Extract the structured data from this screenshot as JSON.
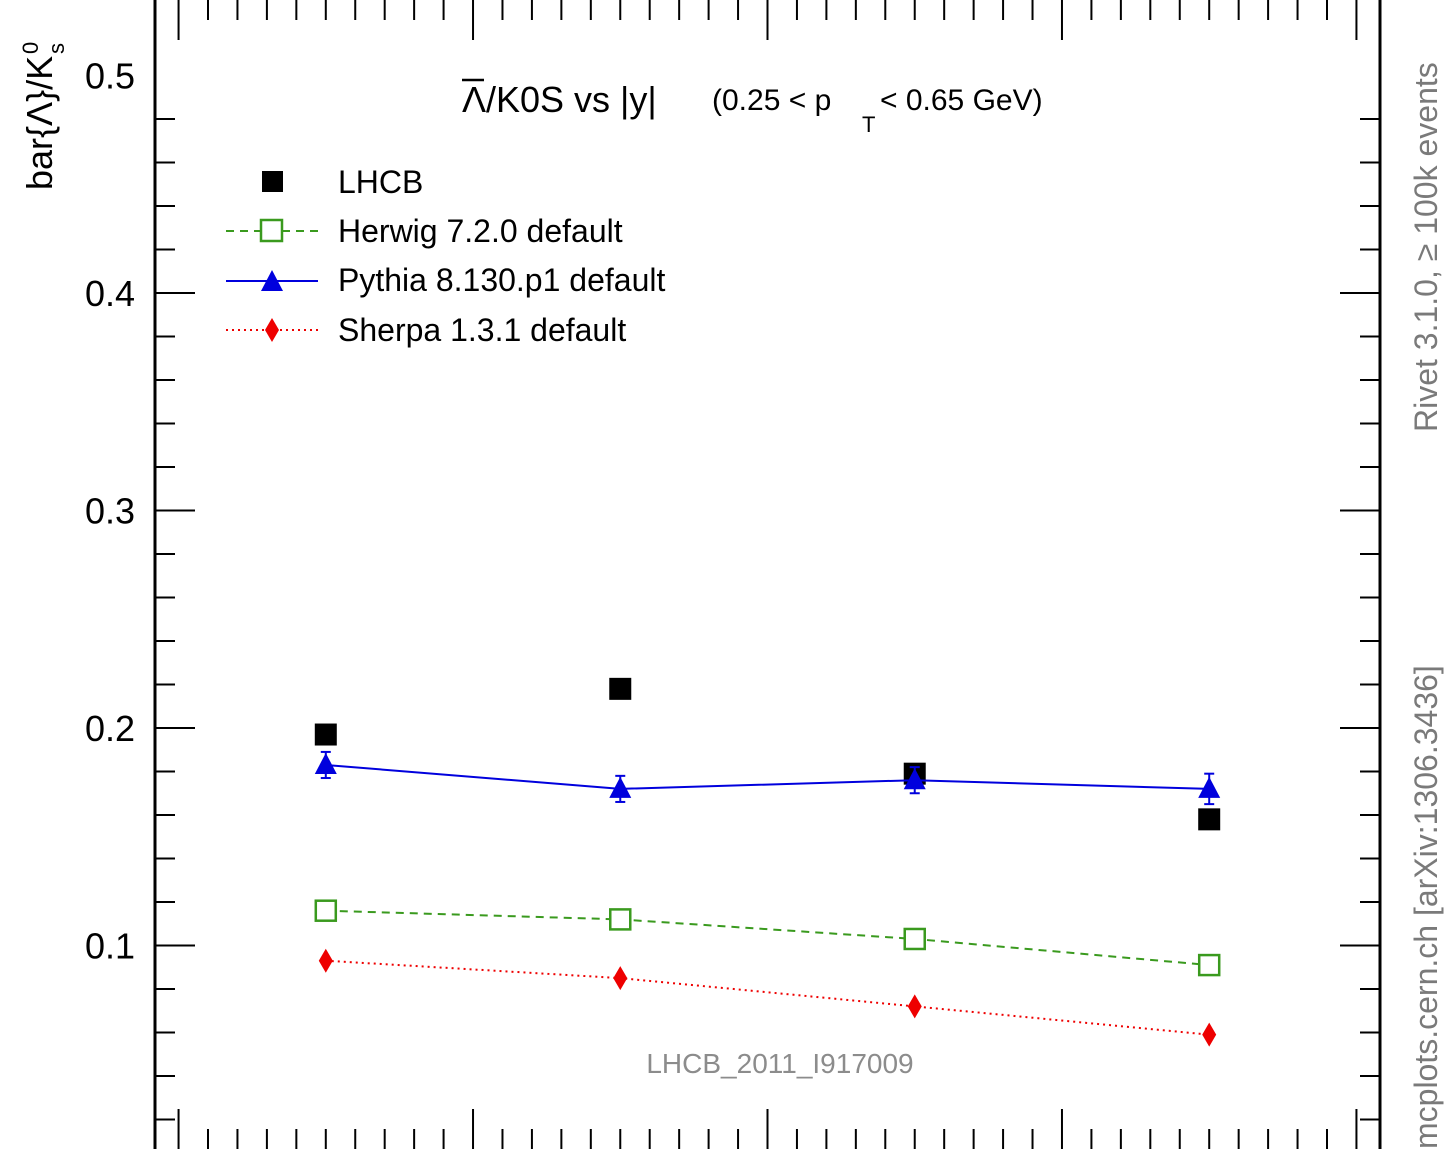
{
  "chart_data": {
    "type": "scatter",
    "title": {
      "prefix": "Λ",
      "main": "/K0S vs |y|",
      "range_open": "(0.25 < p",
      "range_sub": "T",
      "range_close": " < 0.65 GeV)"
    },
    "ylabel": {
      "main": "bar{Λ}/K",
      "sup": "0",
      "sub": "s"
    },
    "ylim": [
      0,
      0.5
    ],
    "yticks": [
      "0.1",
      "0.2",
      "0.3",
      "0.4",
      "0.5"
    ],
    "x": [
      2.25,
      2.75,
      3.25,
      3.75
    ],
    "xlim": [
      1.96,
      4.04
    ],
    "series": [
      {
        "name": "LHCB",
        "marker": "filled-square",
        "color": "#000000",
        "line": "none",
        "values": [
          0.197,
          0.218,
          0.179,
          0.158
        ],
        "errors": [
          0,
          0,
          0,
          0
        ]
      },
      {
        "name": "Herwig 7.2.0 default",
        "marker": "open-square",
        "color": "#3a9a1e",
        "line": "dashed",
        "values": [
          0.116,
          0.112,
          0.103,
          0.091
        ],
        "errors": [
          0,
          0,
          0,
          0
        ]
      },
      {
        "name": "Pythia 8.130.p1 default",
        "marker": "filled-triangle",
        "color": "#0000dd",
        "line": "solid",
        "values": [
          0.183,
          0.172,
          0.176,
          0.172
        ],
        "errors": [
          0.006,
          0.006,
          0.006,
          0.007
        ]
      },
      {
        "name": "Sherpa 1.3.1 default",
        "marker": "filled-diamond",
        "color": "#ee0000",
        "line": "dotted",
        "values": [
          0.093,
          0.085,
          0.072,
          0.059
        ],
        "errors": [
          0,
          0,
          0,
          0
        ]
      }
    ]
  },
  "side_right": "Rivet 3.1.0, ≥ 100k events",
  "side_right_bottom": "mcplots.cern.ch [arXiv:1306.3436]",
  "watermark": "LHCB_2011_I917009"
}
